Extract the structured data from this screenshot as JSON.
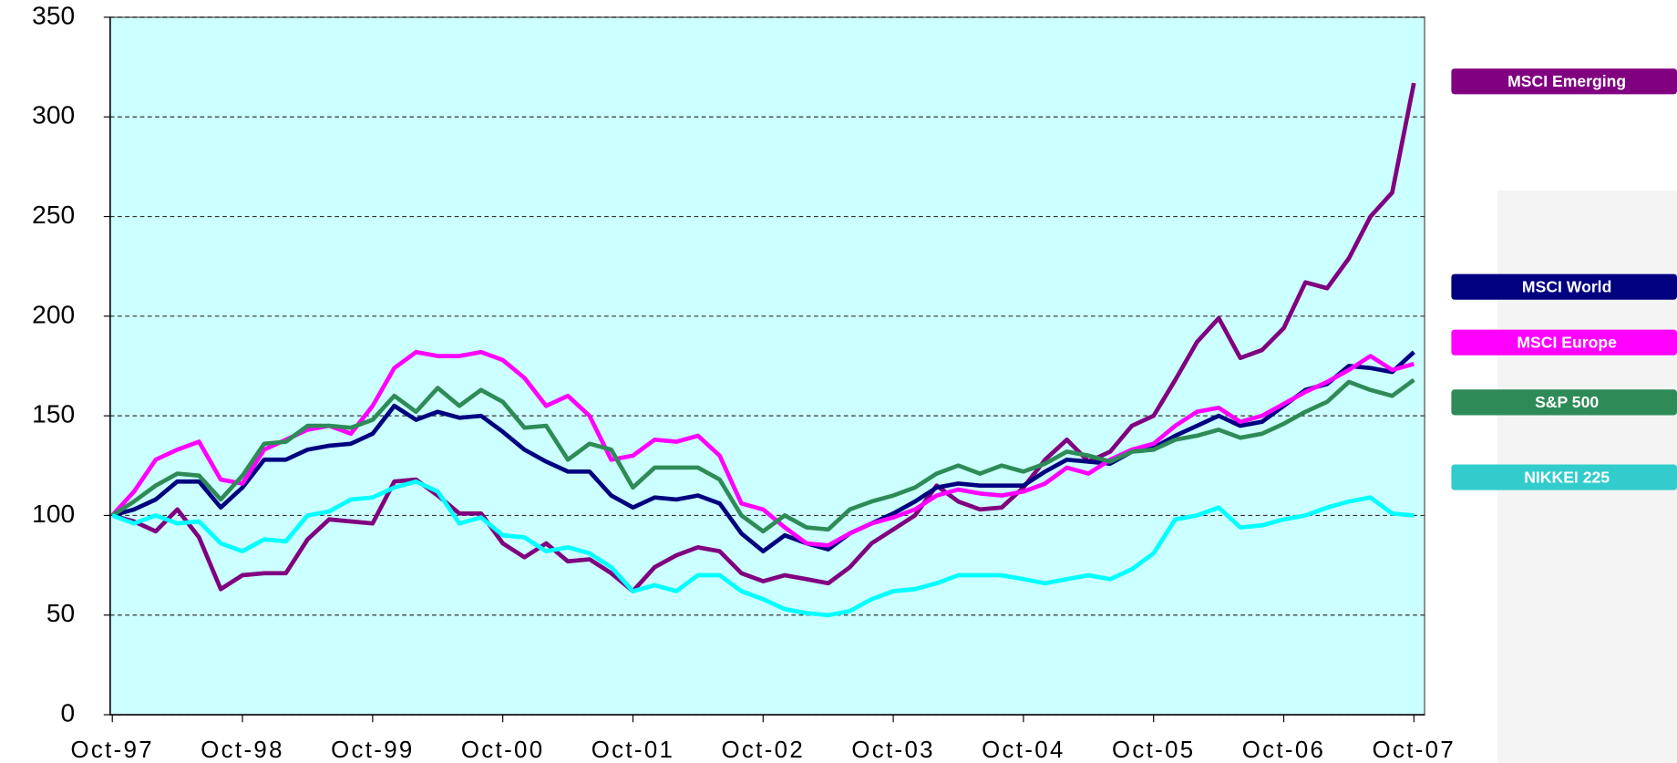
{
  "chart_data": {
    "type": "line",
    "categories": [
      "Oct-97",
      null,
      null,
      null,
      null,
      null,
      "Oct-98",
      null,
      null,
      null,
      null,
      null,
      "Oct-99",
      null,
      null,
      null,
      null,
      null,
      "Oct-00",
      null,
      null,
      null,
      null,
      null,
      "Oct-01",
      null,
      null,
      null,
      null,
      null,
      "Oct-02",
      null,
      null,
      null,
      null,
      null,
      "Oct-03",
      null,
      null,
      null,
      null,
      null,
      "Oct-04",
      null,
      null,
      null,
      null,
      null,
      "Oct-05",
      null,
      null,
      null,
      null,
      null,
      "Oct-06",
      null,
      null,
      null,
      null,
      null,
      "Oct-07"
    ],
    "series": [
      {
        "name": "MSCI Emerging",
        "color": "#800080",
        "values": [
          100,
          97,
          92,
          103,
          89,
          63,
          70,
          71,
          71,
          88,
          98,
          97,
          96,
          117,
          118,
          110,
          101,
          101,
          86,
          79,
          86,
          77,
          78,
          71,
          62,
          74,
          80,
          84,
          82,
          71,
          67,
          70,
          68,
          66,
          74,
          86,
          93,
          100,
          115,
          107,
          103,
          104,
          114,
          128,
          138,
          127,
          132,
          145,
          150,
          168,
          187,
          199,
          179,
          183,
          194,
          217,
          214,
          229,
          250,
          262,
          317
        ]
      },
      {
        "name": "MSCI World",
        "color": "#000080",
        "values": [
          100,
          103,
          108,
          117,
          117,
          104,
          114,
          128,
          128,
          133,
          135,
          136,
          141,
          155,
          148,
          152,
          149,
          150,
          142,
          133,
          127,
          122,
          122,
          110,
          104,
          109,
          108,
          110,
          106,
          91,
          82,
          90,
          86,
          83,
          91,
          96,
          101,
          107,
          114,
          116,
          115,
          115,
          115,
          122,
          128,
          127,
          126,
          132,
          134,
          140,
          145,
          150,
          145,
          147,
          155,
          163,
          166,
          175,
          174,
          172,
          182
        ]
      },
      {
        "name": "MSCI Europe",
        "color": "#ff00ff",
        "values": [
          100,
          112,
          128,
          133,
          137,
          118,
          116,
          133,
          138,
          143,
          145,
          141,
          155,
          174,
          182,
          180,
          180,
          182,
          178,
          169,
          155,
          160,
          150,
          128,
          130,
          138,
          137,
          140,
          130,
          106,
          103,
          94,
          86,
          85,
          91,
          96,
          99,
          103,
          110,
          113,
          111,
          110,
          112,
          116,
          124,
          121,
          128,
          133,
          136,
          145,
          152,
          154,
          147,
          150,
          156,
          162,
          167,
          173,
          180,
          173,
          176
        ]
      },
      {
        "name": "S&P 500",
        "color": "#2e8b57",
        "values": [
          100,
          107,
          115,
          121,
          120,
          108,
          120,
          136,
          137,
          145,
          145,
          144,
          148,
          160,
          152,
          164,
          155,
          163,
          157,
          144,
          145,
          128,
          136,
          133,
          114,
          124,
          124,
          124,
          118,
          100,
          92,
          100,
          94,
          93,
          103,
          107,
          110,
          114,
          121,
          125,
          121,
          125,
          122,
          126,
          132,
          130,
          127,
          132,
          133,
          138,
          140,
          143,
          139,
          141,
          146,
          152,
          157,
          167,
          163,
          160,
          168
        ]
      },
      {
        "name": "NIKKEI 225",
        "color": "#00ffff",
        "values": [
          100,
          96,
          100,
          96,
          97,
          86,
          82,
          88,
          87,
          100,
          102,
          108,
          109,
          114,
          117,
          112,
          96,
          99,
          90,
          89,
          82,
          84,
          81,
          74,
          62,
          65,
          62,
          70,
          70,
          62,
          58,
          53,
          51,
          50,
          52,
          58,
          62,
          63,
          66,
          70,
          70,
          70,
          68,
          66,
          68,
          70,
          68,
          73,
          81,
          98,
          100,
          104,
          94,
          95,
          98,
          100,
          104,
          107,
          109,
          101,
          100
        ]
      }
    ],
    "ylim": [
      0,
      350
    ],
    "yticks": [
      0,
      50,
      100,
      150,
      200,
      250,
      300,
      350
    ],
    "grid": true
  }
}
